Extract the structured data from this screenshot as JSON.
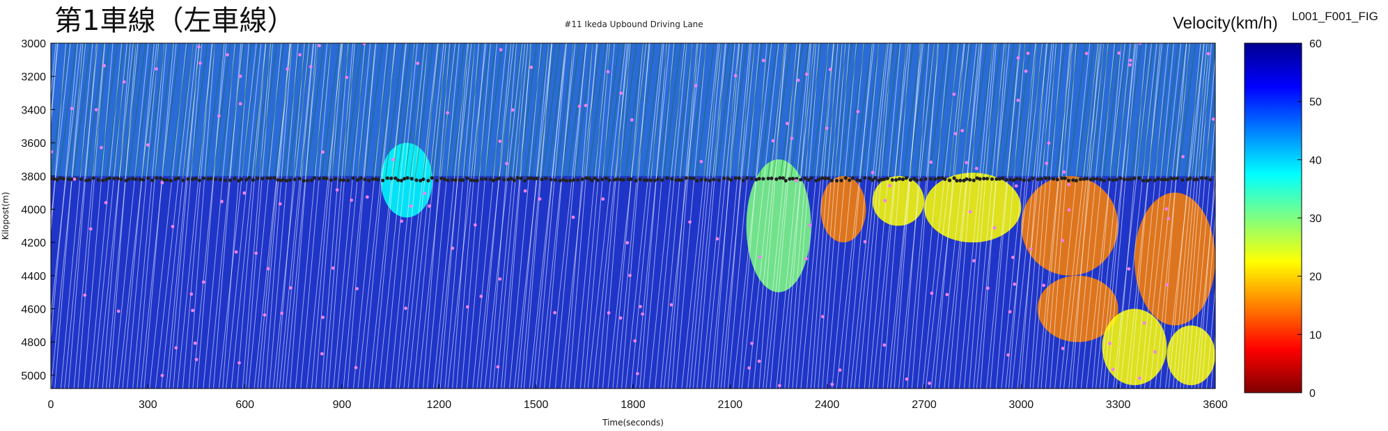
{
  "header": {
    "title": "第1車線（左車線）",
    "subtitle": "#11 Ikeda Upbound Driving Lane",
    "colorbar_title": "Velocity(km/h)",
    "figure_id": "L001_F001_FIG"
  },
  "chart_data": {
    "type": "heatmap",
    "title": "#11 Ikeda Upbound Driving Lane",
    "xlabel": "Time(seconds)",
    "ylabel": "Kilopost(m)",
    "xlim": [
      0,
      3600
    ],
    "ylim": [
      3000,
      5080
    ],
    "y_inverted": true,
    "x_ticks": [
      0,
      300,
      600,
      900,
      1200,
      1500,
      1800,
      2100,
      2400,
      2700,
      3000,
      3300,
      3600
    ],
    "y_ticks": [
      3000,
      3200,
      3400,
      3600,
      3800,
      4000,
      4200,
      4400,
      4600,
      4800,
      5000
    ],
    "colorbar": {
      "label": "Velocity(km/h)",
      "range": [
        0,
        60
      ],
      "ticks": [
        0,
        10,
        20,
        30,
        40,
        50,
        60
      ],
      "colormap": "jet",
      "stops": [
        "#7f0000",
        "#ff0000",
        "#ff8000",
        "#ffff00",
        "#80ff80",
        "#00ffff",
        "#0080ff",
        "#0000ff",
        "#00008f"
      ]
    },
    "detector_line_kilopost": 3820,
    "congestion_regions": [
      {
        "t_start": 1020,
        "t_end": 1180,
        "kp_start": 3600,
        "kp_end": 4050,
        "velocity": 35
      },
      {
        "t_start": 2150,
        "t_end": 2350,
        "kp_start": 3700,
        "kp_end": 4500,
        "velocity": 30
      },
      {
        "t_start": 2380,
        "t_end": 2520,
        "kp_start": 3800,
        "kp_end": 4200,
        "velocity": 18
      },
      {
        "t_start": 2540,
        "t_end": 2700,
        "kp_start": 3800,
        "kp_end": 4100,
        "velocity": 20
      },
      {
        "t_start": 2700,
        "t_end": 3000,
        "kp_start": 3780,
        "kp_end": 4200,
        "velocity": 22
      },
      {
        "t_start": 3000,
        "t_end": 3300,
        "kp_start": 3800,
        "kp_end": 4400,
        "velocity": 18
      },
      {
        "t_start": 3050,
        "t_end": 3300,
        "kp_start": 4400,
        "kp_end": 4800,
        "velocity": 15
      },
      {
        "t_start": 3250,
        "t_end": 3450,
        "kp_start": 4600,
        "kp_end": 5060,
        "velocity": 20
      },
      {
        "t_start": 3350,
        "t_end": 3600,
        "kp_start": 3900,
        "kp_end": 4700,
        "velocity": 16
      },
      {
        "t_start": 3450,
        "t_end": 3600,
        "kp_start": 4700,
        "kp_end": 5060,
        "velocity": 25
      }
    ],
    "upstream_region": {
      "kp_start": 3000,
      "kp_end": 3800,
      "velocity": 38
    },
    "colors": {
      "trajectory": "#ffffff",
      "upstream_trajectory": "#1a6b2a",
      "detector_points": "#222222",
      "markers": "#f080f0"
    }
  }
}
